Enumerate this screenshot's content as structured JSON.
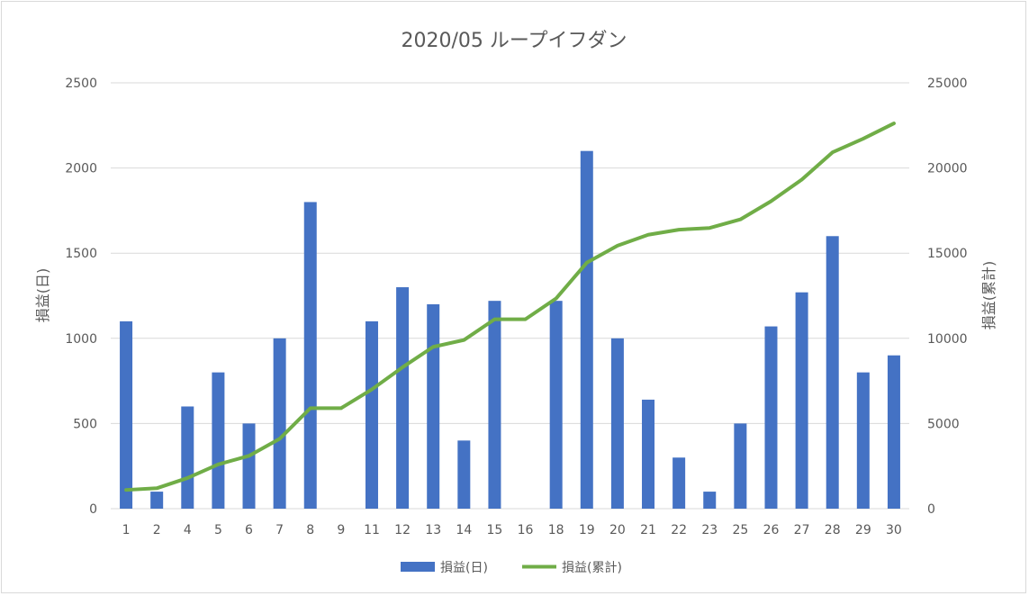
{
  "chart_data": {
    "type": "bar+line",
    "title": "2020/05 ループイフダン",
    "categories": [
      "1",
      "2",
      "4",
      "5",
      "6",
      "7",
      "8",
      "9",
      "11",
      "12",
      "13",
      "14",
      "15",
      "16",
      "18",
      "19",
      "20",
      "21",
      "22",
      "23",
      "25",
      "26",
      "27",
      "28",
      "29",
      "30"
    ],
    "series": [
      {
        "name": "損益(日)",
        "type": "bar",
        "axis": "left",
        "color": "#4472C4",
        "values": [
          1100,
          100,
          600,
          800,
          500,
          1000,
          1800,
          0,
          1100,
          1300,
          1200,
          400,
          1220,
          0,
          1220,
          2100,
          1000,
          640,
          300,
          100,
          500,
          1070,
          1270,
          1600,
          800,
          900
        ]
      },
      {
        "name": "損益(累計)",
        "type": "line",
        "axis": "right",
        "color": "#70AD47",
        "values": [
          1100,
          1200,
          1800,
          2600,
          3100,
          4100,
          5900,
          5900,
          7000,
          8300,
          9500,
          9900,
          11120,
          11120,
          12340,
          14440,
          15440,
          16080,
          16380,
          16480,
          16980,
          18050,
          19320,
          20920,
          21720,
          22620
        ]
      }
    ],
    "ylabel": "損益(日)",
    "y2label": "損益(累計)",
    "ylim": [
      0,
      2500
    ],
    "y2lim": [
      0,
      25000
    ],
    "yticks": [
      "0",
      "500",
      "1000",
      "1500",
      "2000",
      "2500"
    ],
    "y2ticks": [
      "0",
      "5000",
      "10000",
      "15000",
      "20000",
      "25000"
    ],
    "grid": true,
    "legend": "bottom",
    "gridColor": "#d9d9d9",
    "textColor": "#595959"
  }
}
